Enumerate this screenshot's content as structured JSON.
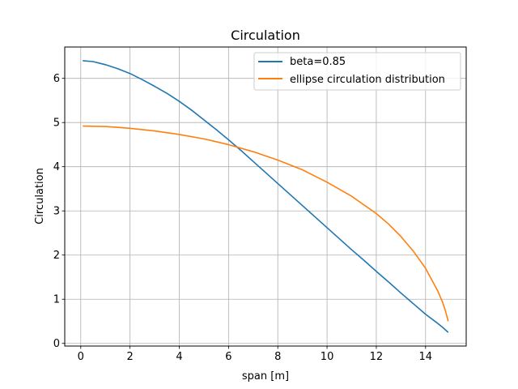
{
  "chart_data": {
    "type": "line",
    "title": "Circulation",
    "xlabel": "span [m]",
    "ylabel": "Circulation",
    "xlim": [
      -0.65,
      15.65
    ],
    "ylim": [
      -0.06,
      6.71
    ],
    "xticks": [
      0,
      2,
      4,
      6,
      8,
      10,
      12,
      14
    ],
    "yticks": [
      0,
      1,
      2,
      3,
      4,
      5,
      6
    ],
    "grid": true,
    "legend_position": "top-right",
    "series": [
      {
        "name": "beta=0.85",
        "color": "#1f77b4",
        "x": [
          0.08,
          0.5,
          1,
          1.5,
          2,
          2.5,
          3,
          3.5,
          4,
          4.5,
          5,
          5.5,
          6,
          6.5,
          7,
          7.5,
          8,
          8.5,
          9,
          9.5,
          10,
          10.5,
          11,
          11.5,
          12,
          12.5,
          13,
          13.5,
          14,
          14.5,
          14.7,
          14.92
        ],
        "values": [
          6.4,
          6.38,
          6.31,
          6.22,
          6.11,
          5.97,
          5.82,
          5.66,
          5.48,
          5.28,
          5.06,
          4.84,
          4.61,
          4.37,
          4.12,
          3.87,
          3.62,
          3.37,
          3.12,
          2.87,
          2.62,
          2.37,
          2.12,
          1.88,
          1.63,
          1.39,
          1.14,
          0.9,
          0.66,
          0.45,
          0.36,
          0.25
        ]
      },
      {
        "name": "ellipse circulation distribution",
        "color": "#ff7f0e",
        "x": [
          0.08,
          1,
          2,
          3,
          4,
          5,
          6,
          7,
          8,
          9,
          10,
          11,
          12,
          12.5,
          13,
          13.5,
          14,
          14.3,
          14.5,
          14.7,
          14.8,
          14.92
        ],
        "values": [
          4.92,
          4.91,
          4.87,
          4.81,
          4.73,
          4.63,
          4.5,
          4.34,
          4.15,
          3.93,
          3.65,
          3.33,
          2.94,
          2.7,
          2.42,
          2.09,
          1.7,
          1.39,
          1.18,
          0.92,
          0.75,
          0.5
        ]
      }
    ]
  }
}
